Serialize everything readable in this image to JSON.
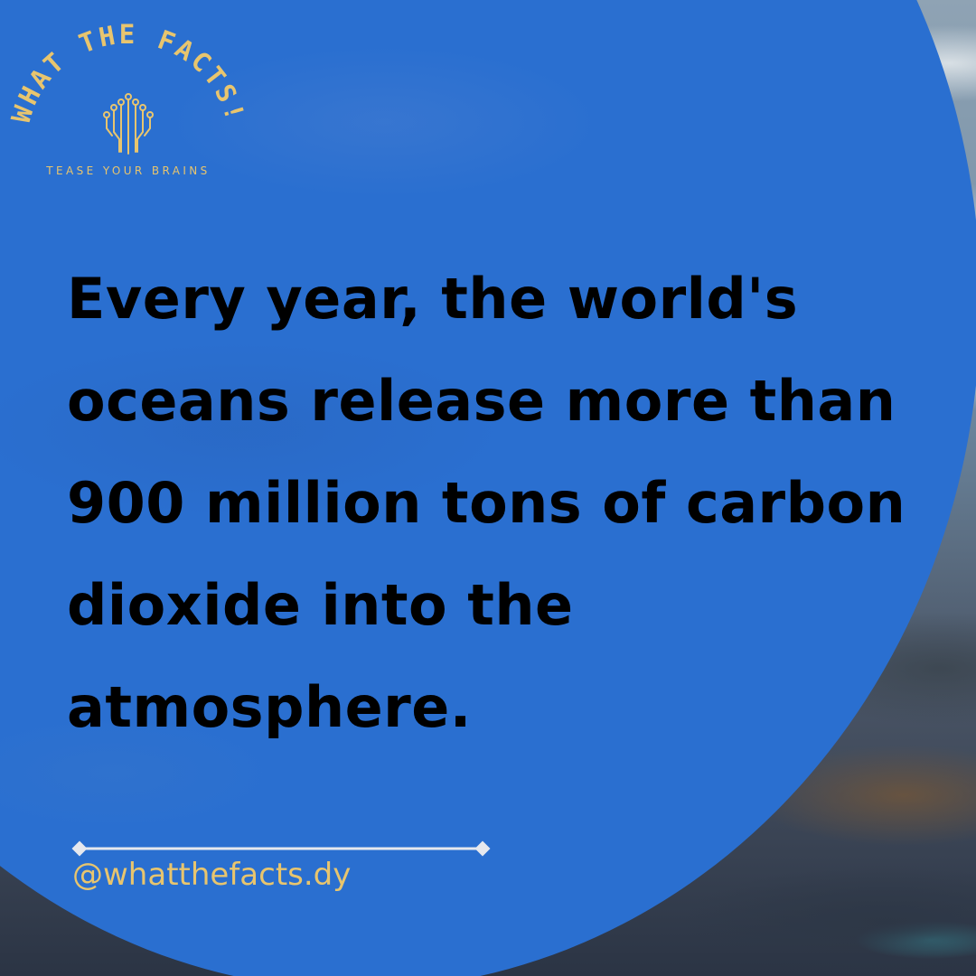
{
  "brand": {
    "name": "WHAT THE FACTS!",
    "tagline": "TEASE YOUR BRAINS",
    "logo_icon": "brain-circuit-icon"
  },
  "post": {
    "fact": "Every year, the world's oceans release more than 900 million tons of carbon dioxide into the atmosphere."
  },
  "footer": {
    "handle": "@whatthefacts.dy"
  },
  "colors": {
    "circle_blue": "#2a6fd0",
    "gold": "#e8c56e",
    "text": "#000000"
  }
}
